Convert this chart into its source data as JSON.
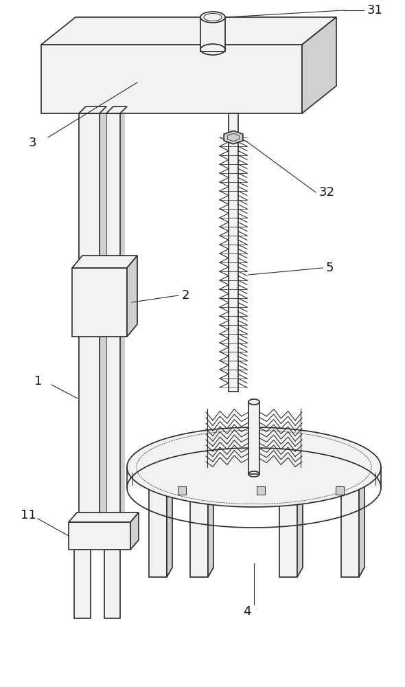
{
  "bg_color": "#ffffff",
  "line_color": "#2a2a2a",
  "light_fill": "#f2f2f2",
  "mid_fill": "#d0d0d0",
  "dark_fill": "#a8a8a8",
  "lw": 1.2,
  "label_fontsize": 13
}
